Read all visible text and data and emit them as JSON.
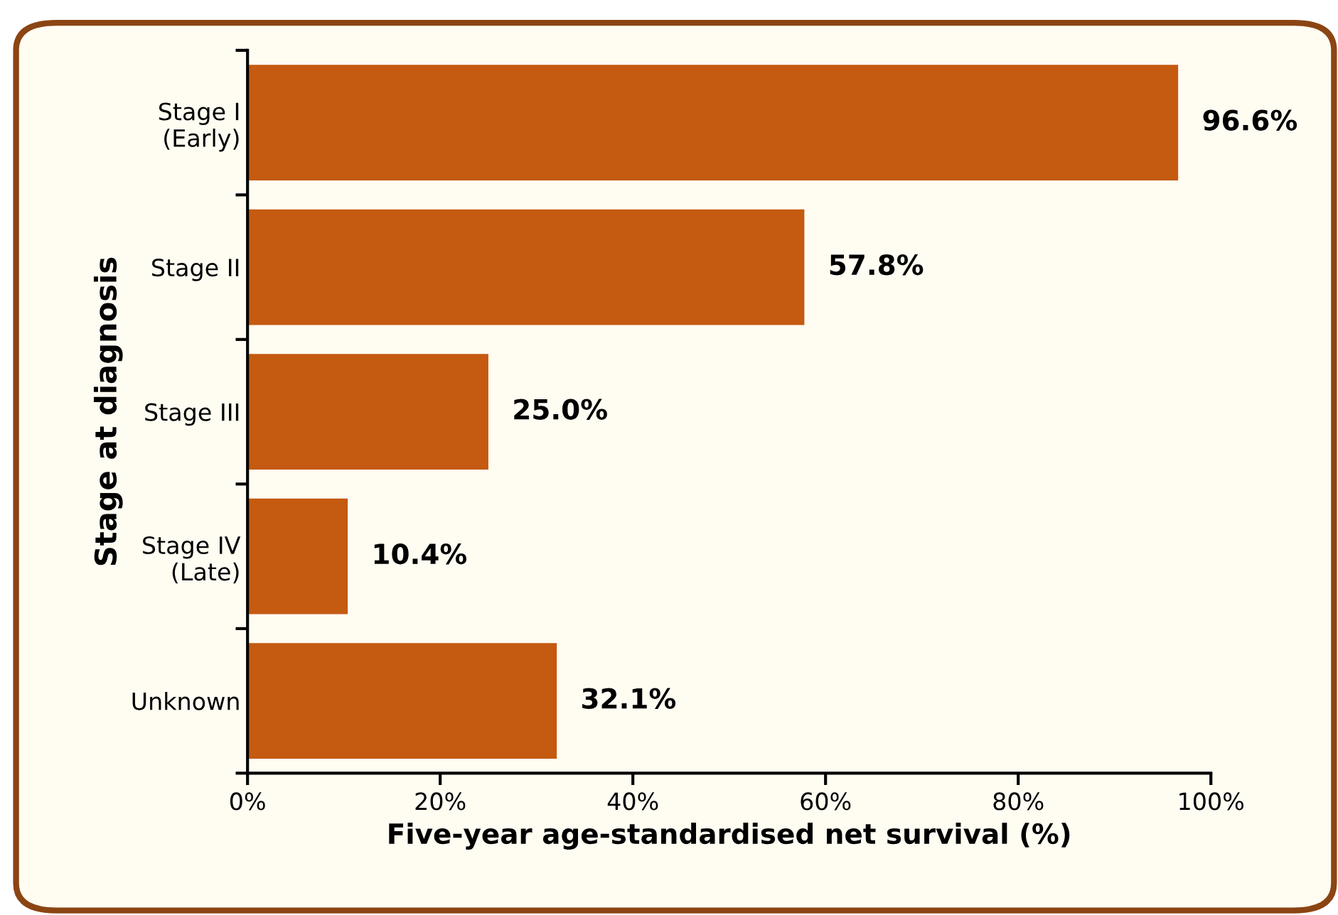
{
  "chart_data": {
    "type": "bar",
    "orientation": "horizontal",
    "xlabel": "Five-year age-standardised net survival (%)",
    "ylabel": "Stage at diagnosis",
    "categories": [
      "Stage I\n(Early)",
      "Stage II",
      "Stage III",
      "Stage IV\n(Late)",
      "Unknown"
    ],
    "values": [
      96.6,
      57.8,
      25.0,
      10.4,
      32.1
    ],
    "value_labels": [
      "96.6%",
      "57.8%",
      "25.0%",
      "10.4%",
      "32.1%"
    ],
    "color": "#c55a11",
    "xlim": [
      0,
      100
    ],
    "xticks": [
      {
        "value": 0,
        "label": "0%"
      },
      {
        "value": 20,
        "label": "20%"
      },
      {
        "value": 40,
        "label": "40%"
      },
      {
        "value": 60,
        "label": "60%"
      },
      {
        "value": 80,
        "label": "80%"
      },
      {
        "value": 100,
        "label": "100%"
      }
    ],
    "grid": false,
    "legend": false
  }
}
